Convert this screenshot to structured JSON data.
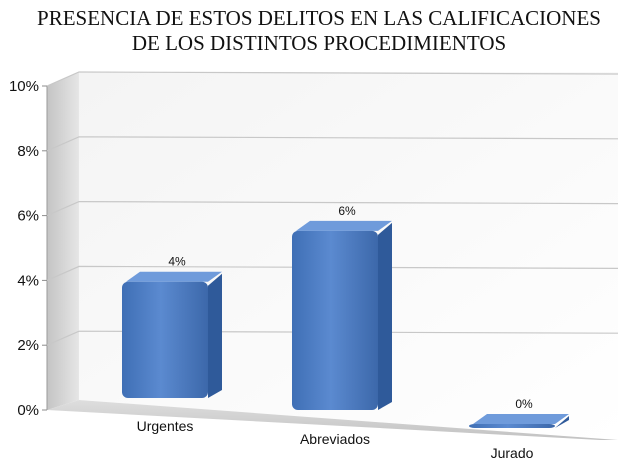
{
  "chart_data": {
    "type": "bar",
    "title_lines": [
      "PRESENCIA DE ESTOS DELITOS EN LAS CALIFICACIONES",
      "DE LOS DISTINTOS PROCEDIMIENTOS"
    ],
    "categories": [
      "Urgentes",
      "Abreviados",
      "Jurado"
    ],
    "values": [
      3.7,
      5.7,
      0.1
    ],
    "data_labels": [
      "4%",
      "6%",
      "0%"
    ],
    "ylim": [
      0,
      10
    ],
    "y_ticks": [
      0,
      2,
      4,
      6,
      8,
      10
    ],
    "y_tick_labels": [
      "0%",
      "2%",
      "4%",
      "6%",
      "8%",
      "10%"
    ],
    "grid": true,
    "legend": "none",
    "bar_color": "#4a7ac0",
    "bar_top_color": "#6f9bdb",
    "bar_side_color": "#2f5a9a"
  }
}
